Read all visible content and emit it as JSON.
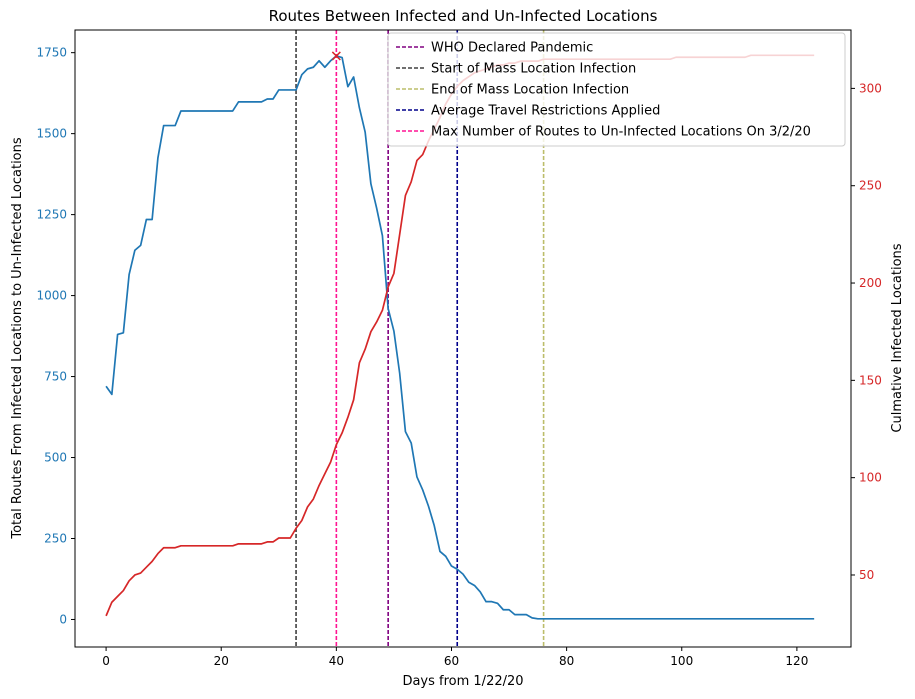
{
  "chart_data": {
    "type": "line",
    "title": "Routes Between Infected and Un-Infected Locations",
    "xlabel": "Days from 1/22/20",
    "ylabel_left": "Total Routes From Infected Locations to Un-Infected Locations",
    "ylabel_right": "Culmative Infected Locations",
    "xlim": [
      -5.4,
      129.4
    ],
    "ylim_left": [
      -85,
      1820
    ],
    "ylim_right": [
      13.0,
      330.0
    ],
    "x_ticks": [
      0,
      20,
      40,
      60,
      80,
      100,
      120
    ],
    "y_left_ticks": [
      0,
      250,
      500,
      750,
      1000,
      1250,
      1500,
      1750
    ],
    "y_right_ticks": [
      50,
      100,
      150,
      200,
      250,
      300
    ],
    "grid": false,
    "legend_position": "top-right",
    "colors": {
      "routes": "#1f77b4",
      "infected": "#d62728",
      "left_tick": "#1f77b4",
      "right_tick": "#d62728"
    },
    "series": [
      {
        "axis": "left",
        "color": "#1f77b4",
        "x": [
          0,
          1,
          2,
          3,
          4,
          5,
          6,
          7,
          8,
          9,
          10,
          11,
          12,
          13,
          14,
          15,
          16,
          17,
          18,
          19,
          20,
          21,
          22,
          23,
          24,
          25,
          26,
          27,
          28,
          29,
          30,
          31,
          32,
          33,
          34,
          35,
          36,
          37,
          38,
          39,
          40,
          41,
          42,
          43,
          44,
          45,
          46,
          47,
          48,
          49,
          50,
          51,
          52,
          53,
          54,
          55,
          56,
          57,
          58,
          59,
          60,
          61,
          62,
          63,
          64,
          65,
          66,
          67,
          68,
          69,
          70,
          71,
          72,
          73,
          74,
          75,
          76,
          77,
          78,
          79,
          80,
          123
        ],
        "values": [
          720,
          695,
          880,
          885,
          1065,
          1140,
          1155,
          1235,
          1235,
          1425,
          1525,
          1525,
          1525,
          1570,
          1570,
          1570,
          1570,
          1570,
          1570,
          1570,
          1570,
          1570,
          1570,
          1598,
          1598,
          1598,
          1598,
          1598,
          1607,
          1607,
          1635,
          1635,
          1635,
          1635,
          1682,
          1700,
          1705,
          1725,
          1705,
          1725,
          1740,
          1735,
          1645,
          1675,
          1580,
          1505,
          1345,
          1270,
          1185,
          960,
          890,
          760,
          580,
          545,
          440,
          400,
          350,
          290,
          210,
          195,
          165,
          155,
          140,
          115,
          105,
          85,
          55,
          55,
          50,
          30,
          30,
          15,
          15,
          15,
          5,
          2,
          2,
          2,
          2,
          2,
          2,
          2
        ]
      },
      {
        "axis": "right",
        "color": "#d62728",
        "x": [
          0,
          1,
          2,
          3,
          4,
          5,
          6,
          7,
          8,
          9,
          10,
          11,
          12,
          13,
          14,
          15,
          16,
          17,
          18,
          19,
          20,
          21,
          22,
          23,
          24,
          25,
          26,
          27,
          28,
          29,
          30,
          31,
          32,
          33,
          34,
          35,
          36,
          37,
          38,
          39,
          40,
          41,
          42,
          43,
          44,
          45,
          46,
          47,
          48,
          49,
          50,
          51,
          52,
          53,
          54,
          55,
          56,
          57,
          58,
          59,
          60,
          61,
          62,
          63,
          64,
          65,
          66,
          67,
          68,
          69,
          70,
          71,
          72,
          73,
          74,
          75,
          76,
          80,
          90,
          98,
          99,
          111,
          112,
          123
        ],
        "values": [
          29,
          36,
          39,
          42,
          47,
          50,
          51,
          54,
          57,
          61,
          64,
          64,
          64,
          65,
          65,
          65,
          65,
          65,
          65,
          65,
          65,
          65,
          65,
          66,
          66,
          66,
          66,
          66,
          67,
          67,
          69,
          69,
          69,
          74,
          78,
          85,
          89,
          96,
          102,
          108,
          117,
          123,
          131,
          140,
          159,
          166,
          175,
          180,
          186,
          198,
          205,
          225,
          245,
          252,
          263,
          266,
          273,
          279,
          285,
          292,
          297,
          301,
          304,
          306,
          308,
          309,
          310,
          311,
          312,
          312,
          313,
          313,
          314,
          314,
          314,
          314,
          315,
          315,
          315,
          315,
          316,
          316,
          317,
          317
        ]
      }
    ],
    "vlines": [
      {
        "x": 49,
        "color": "#800080",
        "label": "WHO Declared Pandemic"
      },
      {
        "x": 33,
        "color": "#404040",
        "label": "Start of Mass Location Infection"
      },
      {
        "x": 76,
        "color": "#bcbd6a",
        "label": "End of Mass Location Infection"
      },
      {
        "x": 61,
        "color": "#00008b",
        "label": "Average Travel Restrictions Applied"
      },
      {
        "x": 40,
        "color": "#ff1493",
        "label": "Max Number of Routes to Un-Infected Locations On 3/2/20"
      }
    ],
    "max_marker": {
      "x": 40,
      "y": 1740,
      "color": "#d62728"
    }
  }
}
